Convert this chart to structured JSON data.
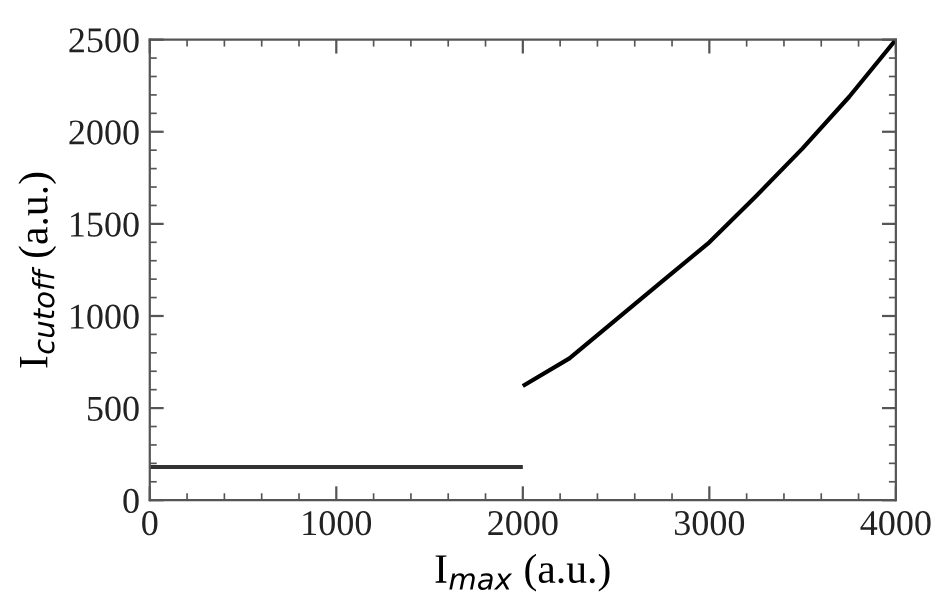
{
  "chart_data": {
    "type": "line",
    "xlabel": "I$_{max}$ (a.u.)",
    "ylabel": "I$_{cutoff}$ (a.u.)",
    "xlim": [
      0,
      4000
    ],
    "ylim": [
      0,
      2500
    ],
    "xticks": [
      0,
      1000,
      2000,
      3000,
      4000
    ],
    "yticks": [
      0,
      500,
      1000,
      1500,
      2000,
      2500
    ],
    "grid": false,
    "marker": "none",
    "line_style": "solid",
    "series": [
      {
        "color": "#333333",
        "x": [
          0,
          2000
        ],
        "values": [
          180,
          180
        ]
      },
      {
        "color": "#000000",
        "x": [
          2000,
          2250,
          2500,
          2750,
          3000,
          3250,
          3500,
          3750,
          4000
        ],
        "values": [
          620,
          770,
          980,
          1190,
          1400,
          1650,
          1910,
          2190,
          2500
        ]
      }
    ]
  }
}
